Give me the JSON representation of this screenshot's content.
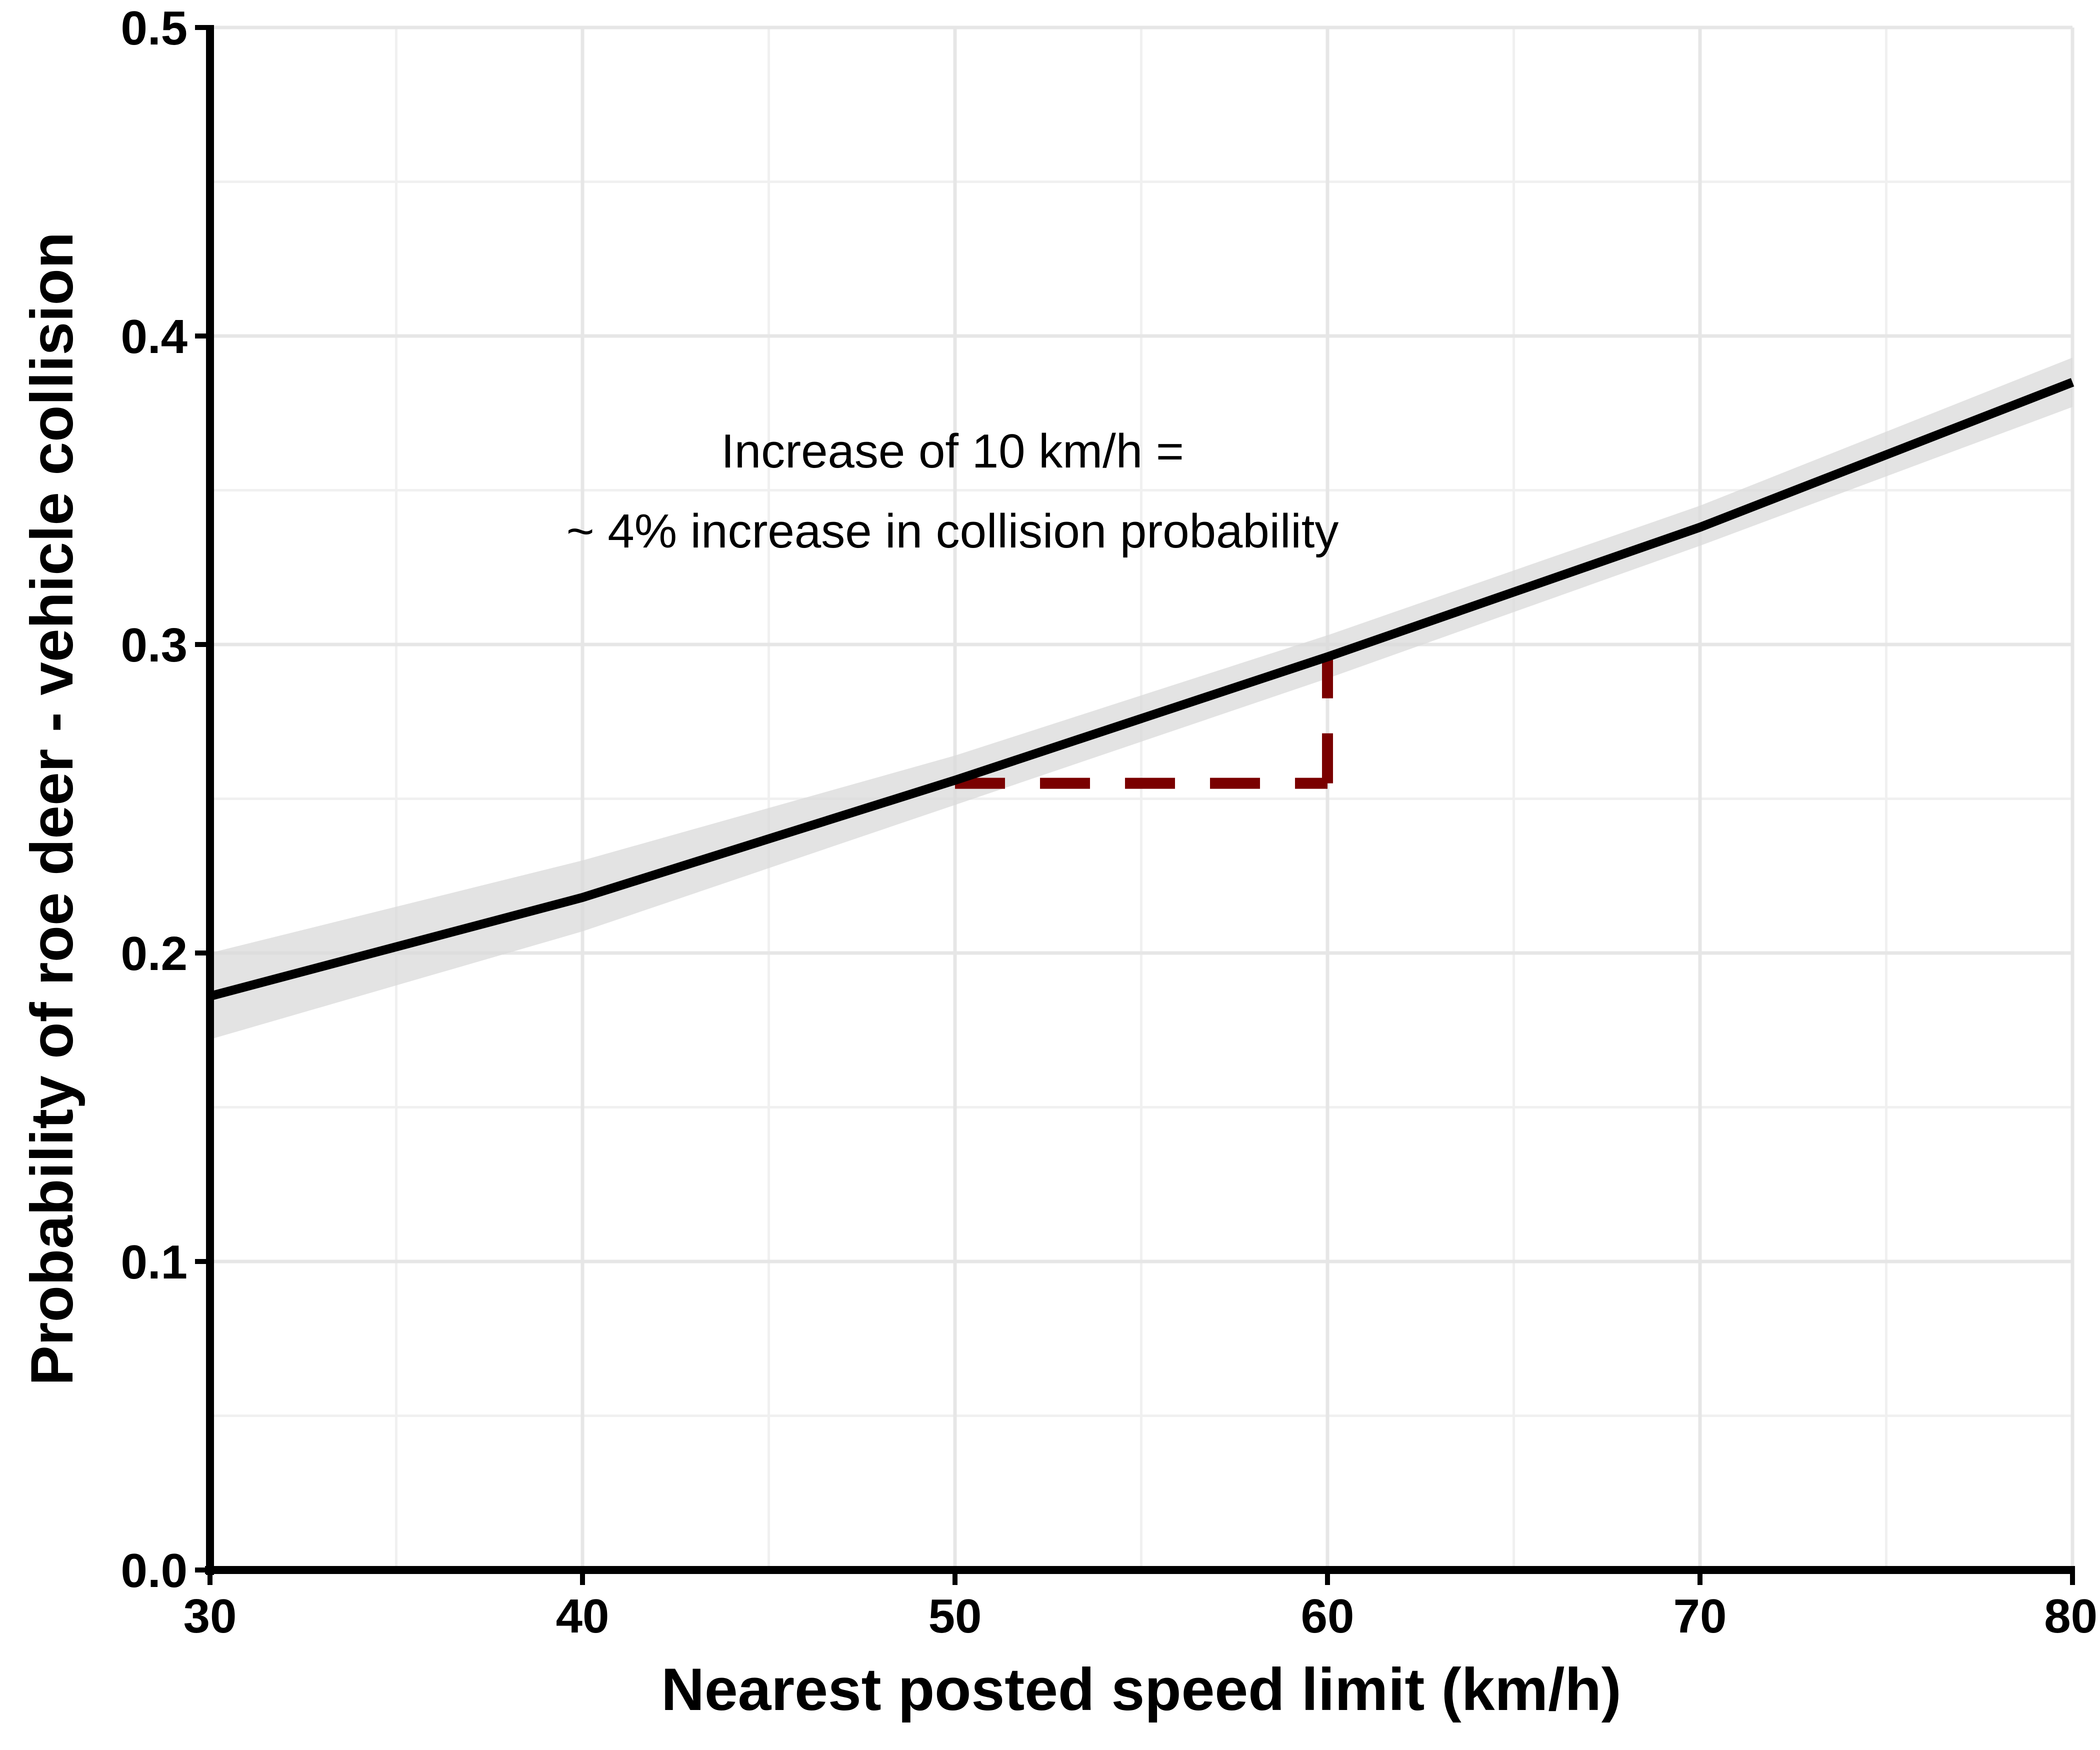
{
  "chart_data": {
    "type": "line",
    "xlabel": "Nearest posted speed limit (km/h)",
    "ylabel": "Probability of roe deer - vehicle collision",
    "xlim": [
      30,
      80
    ],
    "ylim": [
      0,
      0.5
    ],
    "grid": true,
    "x_ticks": [
      30,
      40,
      50,
      60,
      70,
      80
    ],
    "x_tick_labels": [
      "30",
      "40",
      "50",
      "60",
      "70",
      "80"
    ],
    "y_ticks": [
      0,
      0.1,
      0.2,
      0.3,
      0.4,
      0.5
    ],
    "y_tick_labels": [
      "0.0",
      "0.1",
      "0.2",
      "0.3",
      "0.4",
      "0.5"
    ],
    "series": [
      {
        "x": [
          30,
          40,
          50,
          60,
          70,
          80
        ],
        "y": [
          0.186,
          0.218,
          0.256,
          0.296,
          0.338,
          0.385
        ],
        "y_lower": [
          0.172,
          0.207,
          0.248,
          0.289,
          0.332,
          0.377
        ],
        "y_upper": [
          0.2,
          0.23,
          0.264,
          0.303,
          0.345,
          0.393
        ],
        "color": "#000000",
        "band_color": "#d9d9d9"
      }
    ],
    "reference_segments": [
      {
        "x": [
          50,
          60
        ],
        "y": [
          0.255,
          0.255
        ],
        "style": "dashed",
        "color": "#7a0000"
      },
      {
        "x": [
          60,
          60
        ],
        "y": [
          0.255,
          0.296
        ],
        "style": "dashed",
        "color": "#7a0000"
      }
    ],
    "annotations": [
      {
        "lines": [
          "Increase of 10 km/h =",
          "~ 4% increase in collision probability"
        ],
        "x": 50,
        "y": 0.37
      }
    ]
  }
}
